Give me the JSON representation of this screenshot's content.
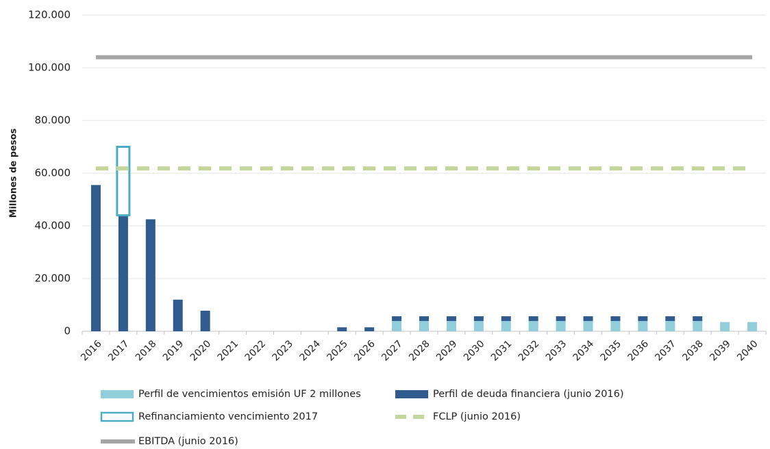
{
  "chart_data": {
    "type": "bar",
    "y_label": "Millones de pesos",
    "categories": [
      "2016",
      "2017",
      "2018",
      "2019",
      "2020",
      "2021",
      "2022",
      "2023",
      "2024",
      "2025",
      "2026",
      "2027",
      "2028",
      "2029",
      "2030",
      "2031",
      "2032",
      "2033",
      "2034",
      "2035",
      "2036",
      "2037",
      "2038",
      "2039",
      "2040"
    ],
    "ylim": [
      0,
      120000
    ],
    "yticks": [
      0,
      {
        "value": 20000,
        "label": "20.000"
      },
      {
        "value": 40000,
        "label": "40.000"
      },
      {
        "value": 60000,
        "label": "60.000"
      },
      {
        "value": 80000,
        "label": "80.000"
      },
      {
        "value": 100000,
        "label": "100.000"
      },
      {
        "value": 120000,
        "label": "120.000"
      }
    ],
    "grid": true,
    "stacked": true,
    "series": [
      {
        "name": "Perfil de vencimientos emisión UF 2 millones",
        "kind": "bar",
        "color": "#92cddc",
        "values": [
          null,
          null,
          null,
          null,
          null,
          null,
          null,
          null,
          null,
          null,
          null,
          3900,
          3900,
          3900,
          3900,
          3900,
          3900,
          3900,
          3900,
          3900,
          3900,
          3900,
          3900,
          3500,
          3500
        ]
      },
      {
        "name": "Perfil de deuda financiera (junio 2016)",
        "kind": "bar",
        "color": "#2f5b8e",
        "values": [
          55500,
          44000,
          42500,
          12000,
          7800,
          null,
          null,
          null,
          null,
          1500,
          1500,
          1800,
          1800,
          1800,
          1800,
          1800,
          1800,
          1800,
          1800,
          1800,
          1800,
          1800,
          1800,
          null,
          null
        ]
      },
      {
        "name": "Refinanciamiento vencimiento 2017",
        "kind": "outline",
        "color": "#4bacc6",
        "values": [
          null,
          26000,
          null,
          null,
          null,
          null,
          null,
          null,
          null,
          null,
          null,
          null,
          null,
          null,
          null,
          null,
          null,
          null,
          null,
          null,
          null,
          null,
          null,
          null,
          null
        ]
      },
      {
        "name": "FCLP (junio 2016)",
        "kind": "dashed",
        "color": "#c3d69b",
        "values": [
          61800,
          61800,
          61800,
          61800,
          61800,
          61800,
          61800,
          61800,
          61800,
          61800,
          61800,
          61800,
          61800,
          61800,
          61800,
          61800,
          61800,
          61800,
          61800,
          61800,
          61800,
          61800,
          61800,
          61800,
          61800
        ]
      },
      {
        "name": "EBITDA (junio 2016)",
        "kind": "line",
        "color": "#a6a6a6",
        "values": [
          104000,
          104000,
          104000,
          104000,
          104000,
          104000,
          104000,
          104000,
          104000,
          104000,
          104000,
          104000,
          104000,
          104000,
          104000,
          104000,
          104000,
          104000,
          104000,
          104000,
          104000,
          104000,
          104000,
          104000,
          104000
        ]
      }
    ]
  }
}
